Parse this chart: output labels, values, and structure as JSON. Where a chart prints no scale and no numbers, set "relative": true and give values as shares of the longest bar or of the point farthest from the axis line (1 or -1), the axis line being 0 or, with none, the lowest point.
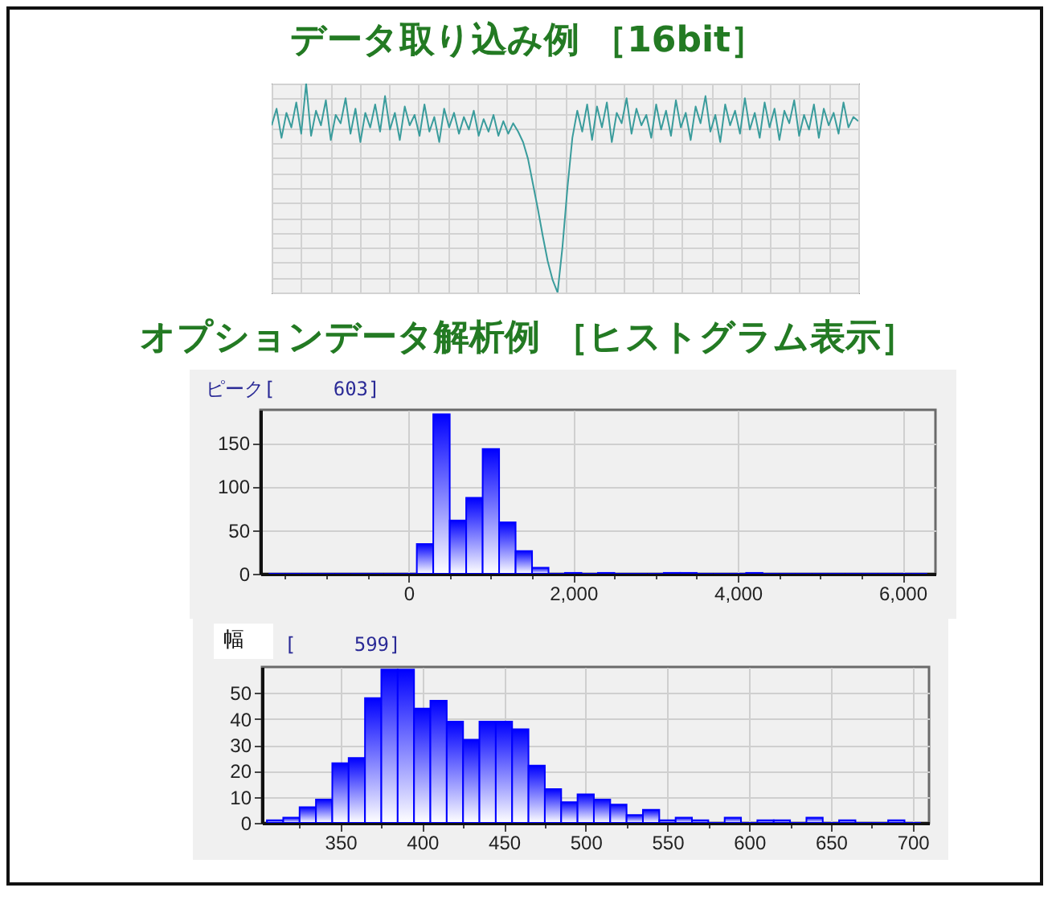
{
  "chart_data": [
    {
      "type": "line",
      "title": "データ取り込み例 ［16bit］",
      "relative": true,
      "grid": true,
      "categories": [
        null,
        null,
        null,
        null,
        null,
        null,
        null,
        null,
        null,
        null,
        null,
        null,
        null,
        null,
        null,
        null,
        null,
        null,
        null,
        null,
        null,
        null,
        null,
        null,
        null,
        null,
        null,
        null,
        null,
        null,
        null,
        null,
        null,
        null,
        null,
        null,
        null,
        null,
        null,
        null,
        null,
        null,
        null,
        null,
        null,
        null,
        null,
        null,
        null,
        null,
        null,
        null,
        null,
        null,
        null,
        null,
        null,
        null,
        null,
        null,
        null,
        null,
        null,
        null,
        null,
        null,
        null,
        null,
        null,
        null,
        null,
        null,
        null,
        null,
        null,
        null,
        null,
        null,
        null,
        null,
        null,
        null,
        null,
        null,
        null,
        null,
        null,
        null,
        null,
        null,
        null,
        null,
        null,
        null,
        null,
        null,
        null,
        null,
        null,
        null,
        null,
        null,
        null,
        null,
        null,
        null,
        null,
        null,
        null,
        null,
        null,
        null,
        null,
        null,
        null,
        null,
        null,
        null,
        null,
        null
      ],
      "series": [
        {
          "color": "#3a9c9c",
          "values": [
            0.8,
            0.88,
            0.74,
            0.86,
            0.79,
            0.91,
            0.76,
            1.0,
            0.75,
            0.87,
            0.8,
            0.92,
            0.73,
            0.85,
            0.81,
            0.93,
            0.76,
            0.88,
            0.72,
            0.86,
            0.79,
            0.9,
            0.77,
            0.94,
            0.78,
            0.86,
            0.73,
            0.89,
            0.8,
            0.85,
            0.75,
            0.9,
            0.77,
            0.84,
            0.72,
            0.88,
            0.79,
            0.86,
            0.76,
            0.84,
            0.78,
            0.87,
            0.75,
            0.83,
            0.77,
            0.85,
            0.75,
            0.82,
            0.76,
            0.81,
            0.77,
            0.72,
            0.64,
            0.52,
            0.4,
            0.27,
            0.15,
            0.06,
            0.0,
            0.22,
            0.5,
            0.74,
            0.87,
            0.77,
            0.9,
            0.73,
            0.89,
            0.79,
            0.91,
            0.72,
            0.86,
            0.81,
            0.93,
            0.76,
            0.88,
            0.8,
            0.85,
            0.74,
            0.9,
            0.78,
            0.87,
            0.75,
            0.92,
            0.79,
            0.86,
            0.73,
            0.89,
            0.81,
            0.94,
            0.77,
            0.85,
            0.72,
            0.9,
            0.8,
            0.87,
            0.76,
            0.93,
            0.78,
            0.86,
            0.74,
            0.91,
            0.79,
            0.88,
            0.73,
            0.87,
            0.81,
            0.92,
            0.75,
            0.85,
            0.78,
            0.9,
            0.74,
            0.88,
            0.8,
            0.86,
            0.76,
            0.91,
            0.79,
            0.84,
            0.82
          ]
        }
      ]
    },
    {
      "type": "histogram",
      "title": "オプションデータ解析例 ［ヒストグラム表示］",
      "subtitle": "ピーク[     603]",
      "color": "#0000ff",
      "grid": true,
      "bins": [
        -1700,
        -1500,
        -1300,
        -1100,
        -900,
        -700,
        -500,
        -300,
        -100,
        100,
        300,
        500,
        700,
        900,
        1100,
        1300,
        1500,
        1700,
        1900,
        2100,
        2300,
        2500,
        2700,
        2900,
        3100,
        3300,
        3500,
        3700,
        3900,
        4100,
        4300,
        4500,
        4700,
        4900,
        5100,
        5300,
        5500,
        5700,
        5900,
        6100,
        6300
      ],
      "values": [
        0,
        0,
        0,
        0,
        0,
        0,
        0,
        0,
        0,
        34,
        183,
        61,
        87,
        143,
        59,
        26,
        7,
        0,
        1,
        0,
        1,
        0,
        0,
        0,
        1,
        1,
        0,
        0,
        0,
        1,
        0,
        0,
        0,
        0,
        0,
        0,
        0,
        0,
        0,
        0
      ],
      "xlim": [
        -1800,
        6400
      ],
      "ylim": [
        0,
        188
      ],
      "xticks": [
        {
          "value": -1500,
          "label": null
        },
        {
          "value": -1000,
          "label": null
        },
        {
          "value": -500,
          "label": null
        },
        0,
        {
          "value": 500,
          "label": null
        },
        {
          "value": 1000,
          "label": null
        },
        {
          "value": 1500,
          "label": null
        },
        {
          "value": 2000,
          "label": "2,000"
        },
        {
          "value": 2500,
          "label": null
        },
        {
          "value": 3000,
          "label": null
        },
        {
          "value": 3500,
          "label": null
        },
        {
          "value": 4000,
          "label": "4,000"
        },
        {
          "value": 4500,
          "label": null
        },
        {
          "value": 5000,
          "label": null
        },
        {
          "value": 5500,
          "label": null
        },
        {
          "value": 6000,
          "label": "6,000"
        }
      ],
      "yticks": [
        0,
        50,
        100,
        150
      ]
    },
    {
      "type": "histogram",
      "title": "幅",
      "subtitle": "[     599]",
      "color": "#0000ff",
      "grid": true,
      "bins": [
        305,
        315,
        325,
        335,
        345,
        355,
        365,
        375,
        385,
        395,
        405,
        415,
        425,
        435,
        445,
        455,
        465,
        475,
        485,
        495,
        505,
        515,
        525,
        535,
        545,
        555,
        565,
        575,
        585,
        595,
        605,
        615,
        625,
        635,
        645,
        655,
        665,
        675,
        685,
        695,
        705
      ],
      "values": [
        1,
        2,
        6,
        9,
        23,
        25,
        48,
        59,
        59,
        44,
        47,
        39,
        32,
        39,
        39,
        36,
        22,
        13,
        8,
        11,
        9,
        7,
        3,
        5,
        1,
        2,
        1,
        0,
        2,
        0,
        1,
        1,
        0,
        2,
        0,
        1,
        0,
        0,
        1,
        0
      ],
      "xlim": [
        302,
        710
      ],
      "ylim": [
        0,
        60
      ],
      "xticks": [
        {
          "value": 325,
          "label": null
        },
        350,
        {
          "value": 375,
          "label": null
        },
        400,
        {
          "value": 425,
          "label": null
        },
        450,
        {
          "value": 475,
          "label": null
        },
        500,
        {
          "value": 525,
          "label": null
        },
        550,
        {
          "value": 575,
          "label": null
        },
        600,
        {
          "value": 625,
          "label": null
        },
        650,
        {
          "value": 675,
          "label": null
        },
        700
      ],
      "yticks": [
        0,
        10,
        20,
        30,
        40,
        50
      ]
    }
  ]
}
